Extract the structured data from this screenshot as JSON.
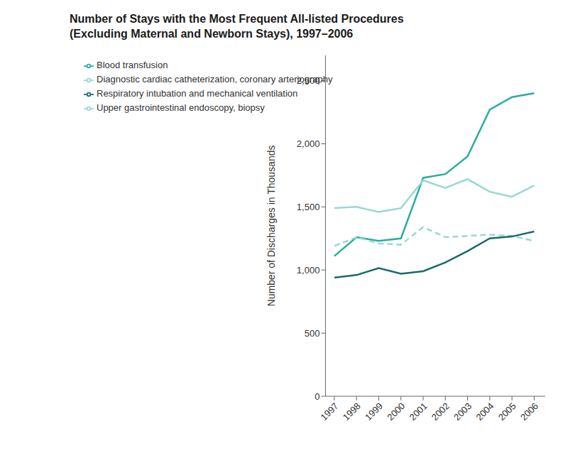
{
  "chart_data": {
    "type": "line",
    "title": "Number of Stays with the Most Frequent All-listed Procedures",
    "subtitle": "(Excluding Maternal and Newborn Stays), 1997–2006",
    "y_label": "Number of Discharges in Thousands",
    "x": [
      1997,
      1998,
      1999,
      2000,
      2001,
      2002,
      2003,
      2004,
      2005,
      2006
    ],
    "xlim": [
      1996.6,
      2006.5
    ],
    "xticks": [
      1997,
      1998,
      1999,
      2000,
      2001,
      2002,
      2003,
      2004,
      2005,
      2006
    ],
    "ylim": [
      0,
      2700
    ],
    "yticks": [
      0,
      500,
      {
        "value": 1000,
        "label": "1,000"
      },
      {
        "value": 1500,
        "label": "1,500"
      },
      {
        "value": 2000,
        "label": "2,000"
      },
      {
        "value": 2500,
        "label": "2,500"
      }
    ],
    "grid": false,
    "legend": "upper left",
    "series": [
      {
        "name": "Blood transfusion",
        "color": "#2aada0",
        "line_style": "solid",
        "values": [
          1110,
          1260,
          1230,
          1250,
          1730,
          1760,
          1900,
          2270,
          2370,
          2400
        ]
      },
      {
        "name": "Diagnostic cardiac catheterization, coronary arteriography",
        "color": "#99d8d4",
        "line_style": "solid",
        "values": [
          1490,
          1500,
          1460,
          1490,
          1710,
          1650,
          1720,
          1620,
          1580,
          1670
        ]
      },
      {
        "name": "Upper gastrointestinal endoscopy, biopsy",
        "color": "#99d8d4",
        "line_style": "dashed",
        "values": [
          1190,
          1260,
          1210,
          1200,
          1340,
          1260,
          1270,
          1280,
          1270,
          1230
        ]
      },
      {
        "name": "Respiratory intubation and mechanical ventilation",
        "color": "#1a6b6b",
        "line_style": "solid",
        "values": [
          940,
          960,
          1015,
          970,
          990,
          1060,
          1150,
          1250,
          1265,
          1305
        ]
      }
    ]
  }
}
